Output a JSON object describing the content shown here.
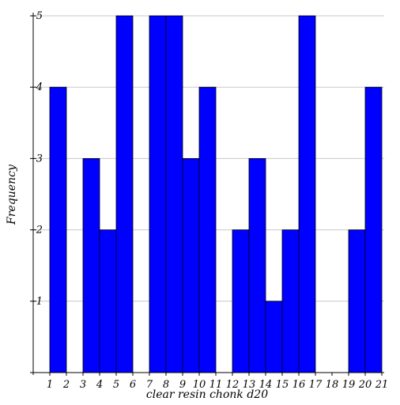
{
  "chart_data": {
    "type": "bar",
    "xlabel": "clear resin chonk d20",
    "ylabel": "Frequency",
    "x_ticks": [
      "1",
      "2",
      "3",
      "4",
      "5",
      "6",
      "7",
      "8",
      "9",
      "10",
      "11",
      "12",
      "13",
      "14",
      "15",
      "16",
      "17",
      "18",
      "19",
      "20",
      "21"
    ],
    "y_ticks": [
      "1",
      "2",
      "3",
      "4",
      "5"
    ],
    "ylim": [
      0,
      5
    ],
    "xlim": [
      1,
      21
    ],
    "grid": true,
    "colors": {
      "bar": "#0000ff",
      "grid": "#c8c8c8"
    },
    "bins": [
      {
        "x0": 1,
        "x1": 2,
        "value": 4
      },
      {
        "x0": 2,
        "x1": 3,
        "value": 0
      },
      {
        "x0": 3,
        "x1": 4,
        "value": 3
      },
      {
        "x0": 4,
        "x1": 5,
        "value": 2
      },
      {
        "x0": 5,
        "x1": 6,
        "value": 5
      },
      {
        "x0": 6,
        "x1": 7,
        "value": 0
      },
      {
        "x0": 7,
        "x1": 8,
        "value": 5
      },
      {
        "x0": 8,
        "x1": 9,
        "value": 5
      },
      {
        "x0": 9,
        "x1": 10,
        "value": 3
      },
      {
        "x0": 10,
        "x1": 11,
        "value": 4
      },
      {
        "x0": 11,
        "x1": 12,
        "value": 0
      },
      {
        "x0": 12,
        "x1": 13,
        "value": 2
      },
      {
        "x0": 13,
        "x1": 14,
        "value": 3
      },
      {
        "x0": 14,
        "x1": 15,
        "value": 1
      },
      {
        "x0": 15,
        "x1": 16,
        "value": 2
      },
      {
        "x0": 16,
        "x1": 17,
        "value": 5
      },
      {
        "x0": 17,
        "x1": 18,
        "value": 0
      },
      {
        "x0": 18,
        "x1": 19,
        "value": 0
      },
      {
        "x0": 19,
        "x1": 20,
        "value": 2
      },
      {
        "x0": 20,
        "x1": 21,
        "value": 4
      }
    ]
  }
}
